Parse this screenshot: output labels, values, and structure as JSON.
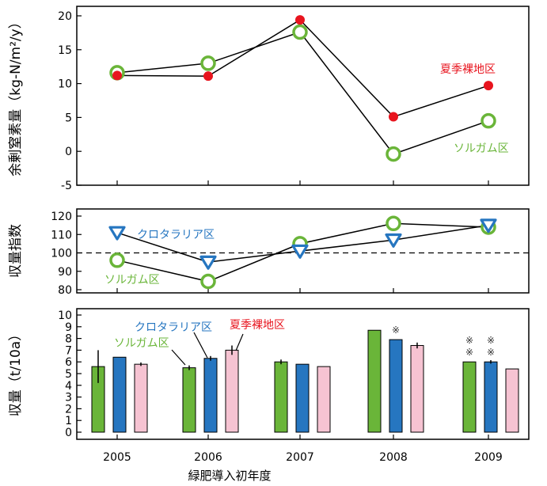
{
  "x_axis": {
    "label": "緑肥導入初年度",
    "ticks": [
      "2005",
      "2006",
      "2007",
      "2008",
      "2009"
    ]
  },
  "colors": {
    "sorghum": "#6ab539",
    "crotalaria": "#2676c0",
    "fallow_red": "#e8141e",
    "fallow_pink": "#f6c3d2",
    "axis": "#000000"
  },
  "chart_data": [
    {
      "type": "line",
      "ylabel": "余剰窒素量（kg-N/m²/y）",
      "ylim": [
        -5,
        20
      ],
      "yticks": [
        -5,
        0,
        5,
        10,
        15,
        20
      ],
      "x": [
        "2005",
        "2006",
        "2007",
        "2008",
        "2009"
      ],
      "series": [
        {
          "key": "fallow",
          "name": "夏季裸地区",
          "marker": "filled-circle",
          "color": "#e8141e",
          "values": [
            11.2,
            11.1,
            19.4,
            5.1,
            9.7
          ]
        },
        {
          "key": "sorghum",
          "name": "ソルガム区",
          "marker": "open-circle",
          "color": "#6ab539",
          "values": [
            11.6,
            13.0,
            17.6,
            -0.4,
            4.5
          ]
        }
      ]
    },
    {
      "type": "line",
      "ylabel": "収量指数",
      "ylim": [
        80,
        120
      ],
      "yticks": [
        80,
        90,
        100,
        110,
        120
      ],
      "reference_line": 100,
      "x": [
        "2005",
        "2006",
        "2007",
        "2008",
        "2009"
      ],
      "series": [
        {
          "key": "crotalaria",
          "name": "クロタラリア区",
          "marker": "open-triangle-down",
          "color": "#2676c0",
          "values": [
            111,
            95,
            101,
            107,
            115
          ]
        },
        {
          "key": "sorghum",
          "name": "ソルガム区",
          "marker": "open-circle",
          "color": "#6ab539",
          "values": [
            96,
            84.5,
            105,
            116,
            114
          ]
        }
      ]
    },
    {
      "type": "bar",
      "ylabel": "収量（t/10a）",
      "ylim": [
        0,
        10
      ],
      "yticks": [
        0,
        1,
        2,
        3,
        4,
        5,
        6,
        7,
        8,
        9,
        10
      ],
      "categories": [
        "2005",
        "2006",
        "2007",
        "2008",
        "2009"
      ],
      "series": [
        {
          "key": "sorghum",
          "name": "ソルガム区",
          "color": "#6ab539",
          "values": [
            5.6,
            5.5,
            6.0,
            8.7,
            6.0
          ],
          "errors": [
            1.4,
            0.2,
            0.2,
            0,
            0
          ]
        },
        {
          "key": "crotalaria",
          "name": "クロタラリア区",
          "color": "#2676c0",
          "values": [
            6.4,
            6.3,
            5.8,
            7.9,
            6.0
          ],
          "errors": [
            0,
            0.2,
            0,
            0,
            0.15
          ]
        },
        {
          "key": "fallow",
          "name": "夏季裸地区",
          "color": "#f6c3d2",
          "values": [
            5.8,
            7.0,
            5.6,
            7.4,
            5.4
          ],
          "errors": [
            0.15,
            0.4,
            0,
            0.25,
            0
          ]
        }
      ],
      "annotations": [
        {
          "category": "2008",
          "series": "crotalaria",
          "text": "※"
        },
        {
          "category": "2009",
          "series": "sorghum",
          "text": "※\n※"
        },
        {
          "category": "2009",
          "series": "crotalaria",
          "text": "※\n※"
        }
      ]
    }
  ]
}
